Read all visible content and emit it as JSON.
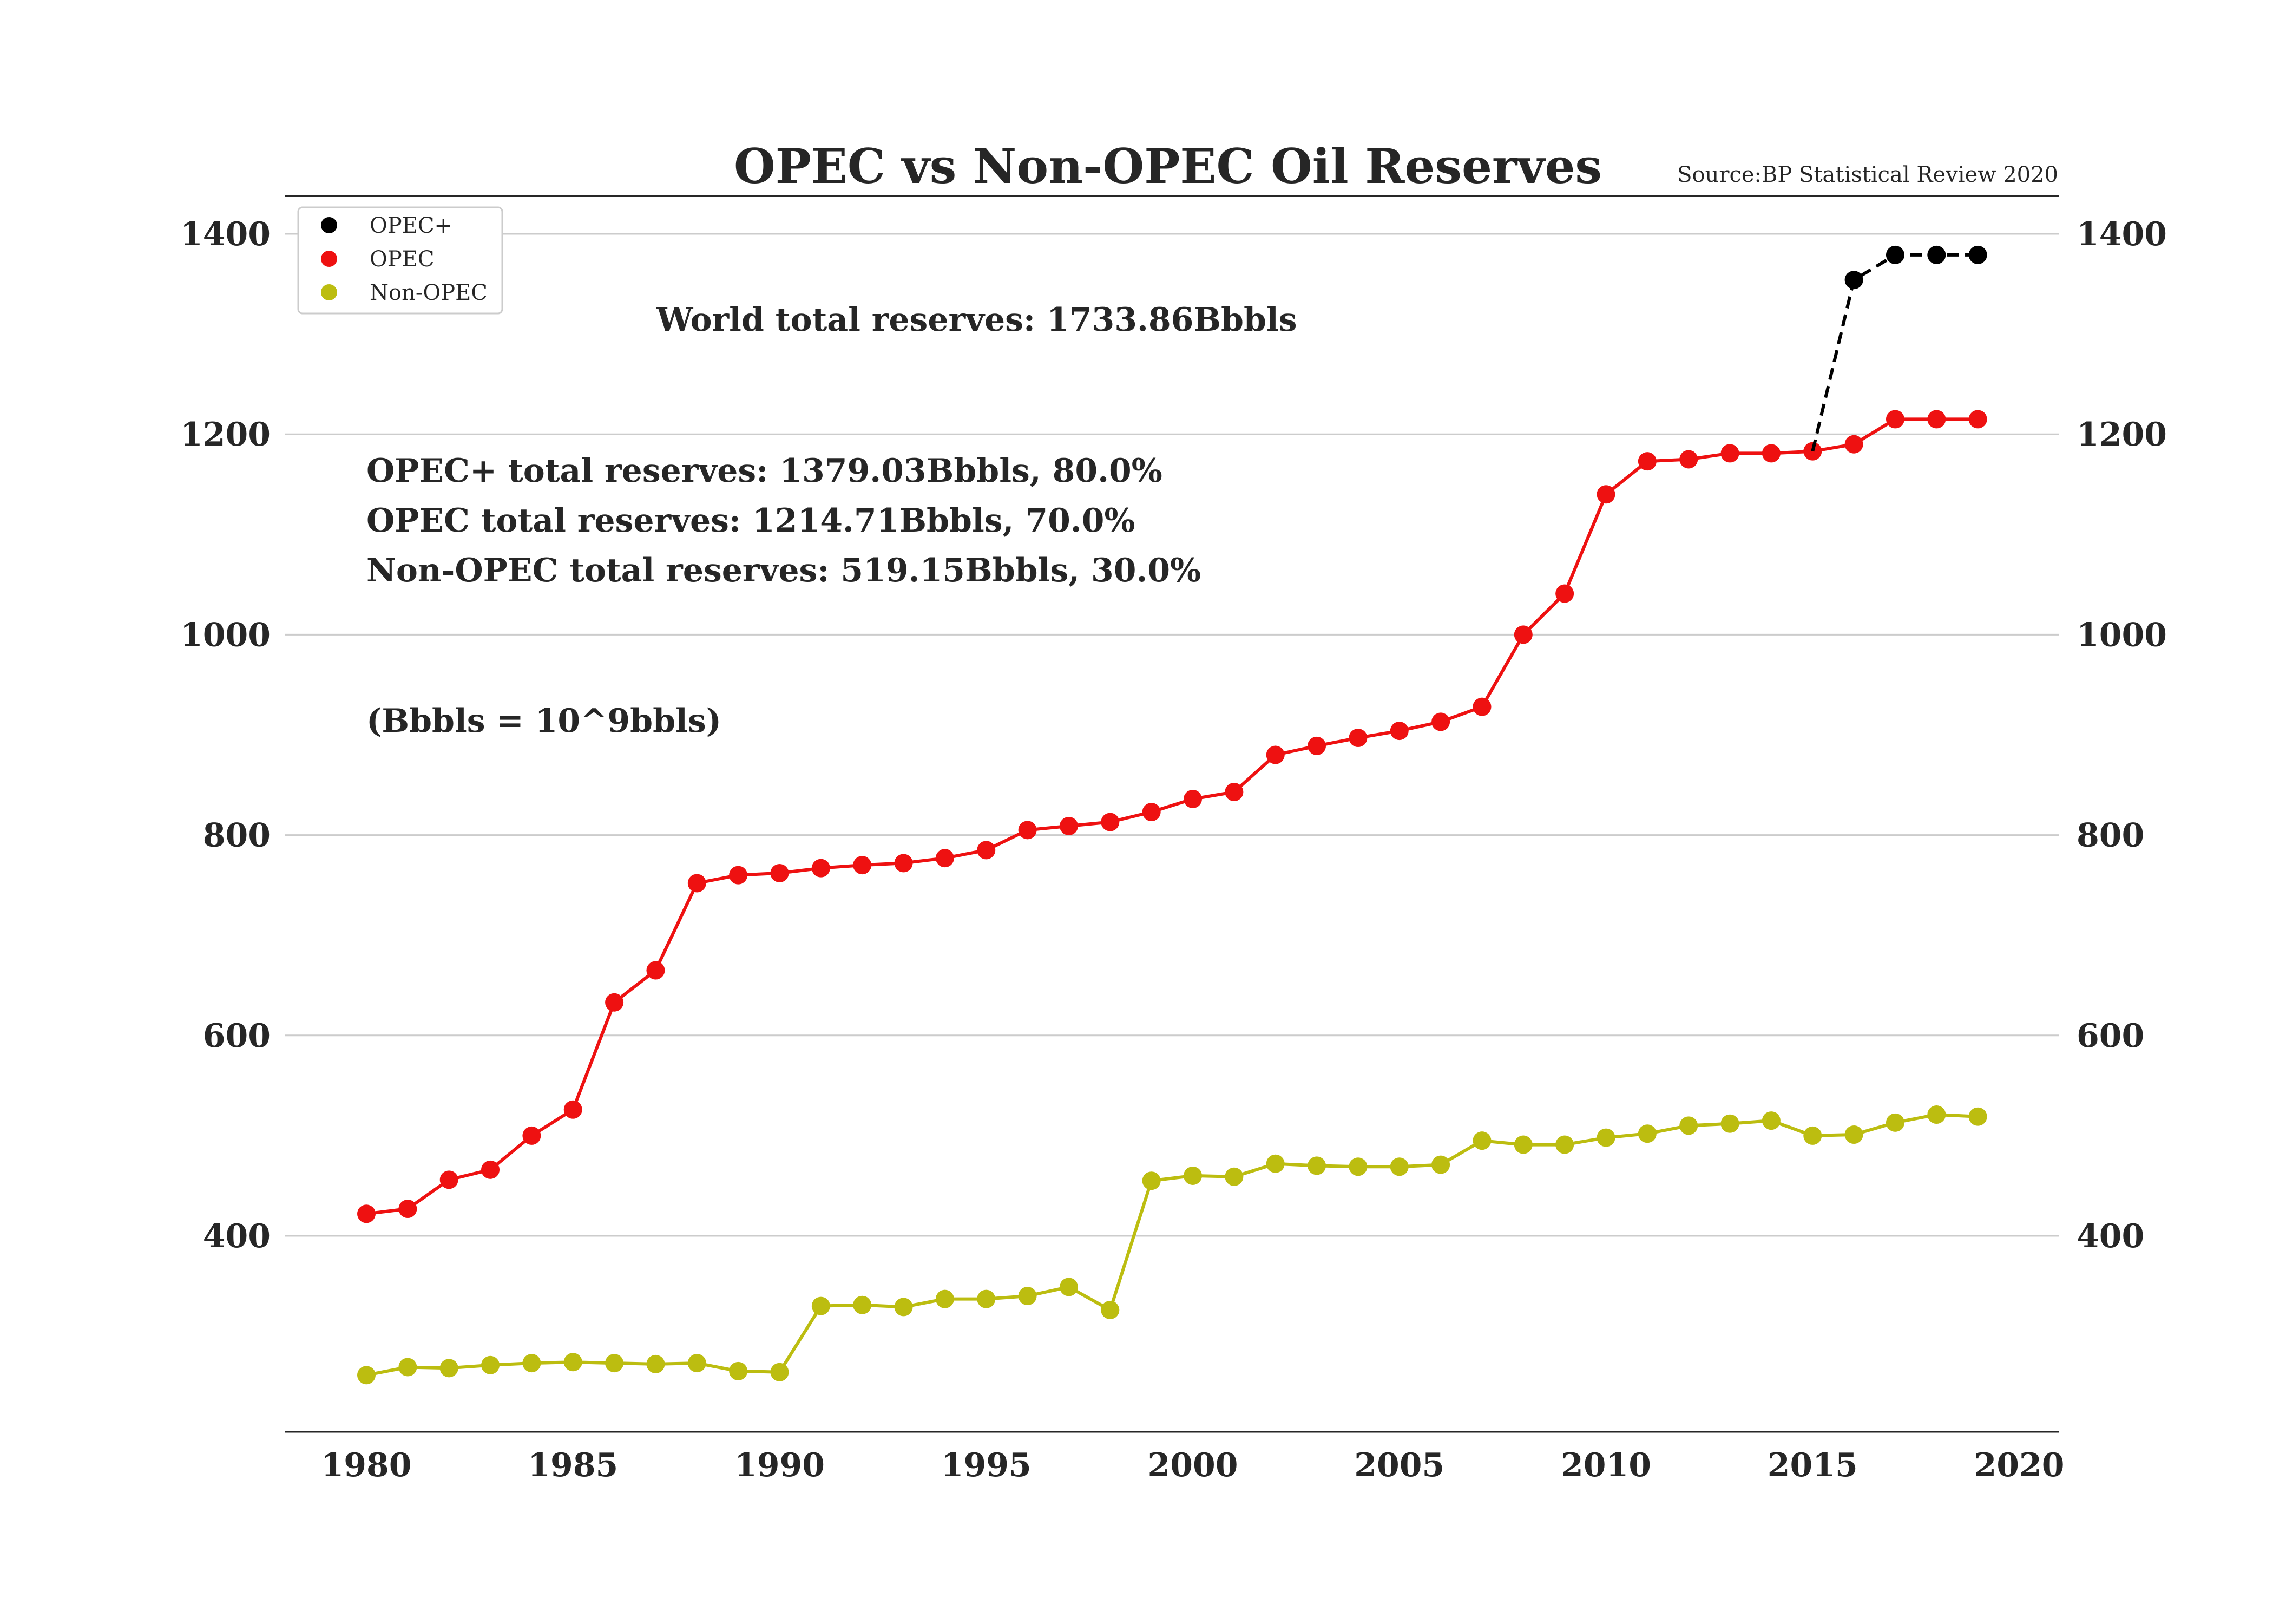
{
  "chart_data": {
    "type": "line",
    "title": "OPEC vs Non-OPEC Oil Reserves",
    "source": "Source:BP Statistical Review 2020",
    "xlabel": "",
    "ylabel": "",
    "xlim": [
      1978,
      2021
    ],
    "ylim": [
      200,
      1435
    ],
    "x_ticks": [
      "1980",
      "1985",
      "1990",
      "1995",
      "2000",
      "2005",
      "2010",
      "2015",
      "2020"
    ],
    "y_ticks": [
      "400",
      "600",
      "800",
      "1000",
      "1200",
      "1400"
    ],
    "grid": "horizontal",
    "legend_position": "top-left",
    "legend": [
      {
        "name": "OPEC+",
        "color": "#000000"
      },
      {
        "name": "OPEC",
        "color": "#ee1111"
      },
      {
        "name": "Non-OPEC",
        "color": "#bcbd10"
      }
    ],
    "annotations": {
      "world": "World total reserves: 1733.86Bbbls",
      "opec_plus": "OPEC+ total reserves: 1379.03Bbbls, 80.0%",
      "opec": "OPEC total reserves: 1214.71Bbbls, 70.0%",
      "non_opec": "Non-OPEC total reserves: 519.15Bbbls, 30.0%",
      "unit": "(Bbbls = 10^9bbls)"
    },
    "series": [
      {
        "name": "OPEC+",
        "color": "#000000",
        "line_style": "dashed",
        "x": [
          2015,
          2016,
          2017,
          2018,
          2019
        ],
        "values": [
          1183,
          1354,
          1379,
          1379,
          1379
        ]
      },
      {
        "name": "OPEC",
        "color": "#ee1111",
        "line_style": "solid",
        "x": [
          1980,
          1981,
          1982,
          1983,
          1984,
          1985,
          1986,
          1987,
          1988,
          1989,
          1990,
          1991,
          1992,
          1993,
          1994,
          1995,
          1996,
          1997,
          1998,
          1999,
          2000,
          2001,
          2002,
          2003,
          2004,
          2005,
          2006,
          2007,
          2008,
          2009,
          2010,
          2011,
          2012,
          2013,
          2014,
          2015,
          2016,
          2017,
          2018,
          2019
        ],
        "values": [
          422,
          427,
          456,
          466,
          500,
          526,
          633,
          665,
          752,
          760,
          762,
          767,
          770,
          772,
          777,
          785,
          805,
          809,
          813,
          823,
          836,
          843,
          880,
          889,
          897,
          904,
          913,
          928,
          1000,
          1041,
          1140,
          1173,
          1175,
          1181,
          1181,
          1183,
          1190,
          1215,
          1215,
          1215
        ]
      },
      {
        "name": "Non-OPEC",
        "color": "#bcbd10",
        "line_style": "solid",
        "x": [
          1980,
          1981,
          1982,
          1983,
          1984,
          1985,
          1986,
          1987,
          1988,
          1989,
          1990,
          1991,
          1992,
          1993,
          1994,
          1995,
          1996,
          1997,
          1998,
          1999,
          2000,
          2001,
          2002,
          2003,
          2004,
          2005,
          2006,
          2007,
          2008,
          2009,
          2010,
          2011,
          2012,
          2013,
          2014,
          2015,
          2016,
          2017,
          2018,
          2019
        ],
        "values": [
          261,
          269,
          268,
          271,
          273,
          274,
          273,
          272,
          273,
          265,
          264,
          330,
          331,
          329,
          337,
          337,
          340,
          349,
          326,
          455,
          460,
          459,
          472,
          470,
          469,
          469,
          471,
          495,
          491,
          491,
          498,
          502,
          510,
          512,
          515,
          500,
          501,
          513,
          521,
          519
        ]
      }
    ]
  }
}
